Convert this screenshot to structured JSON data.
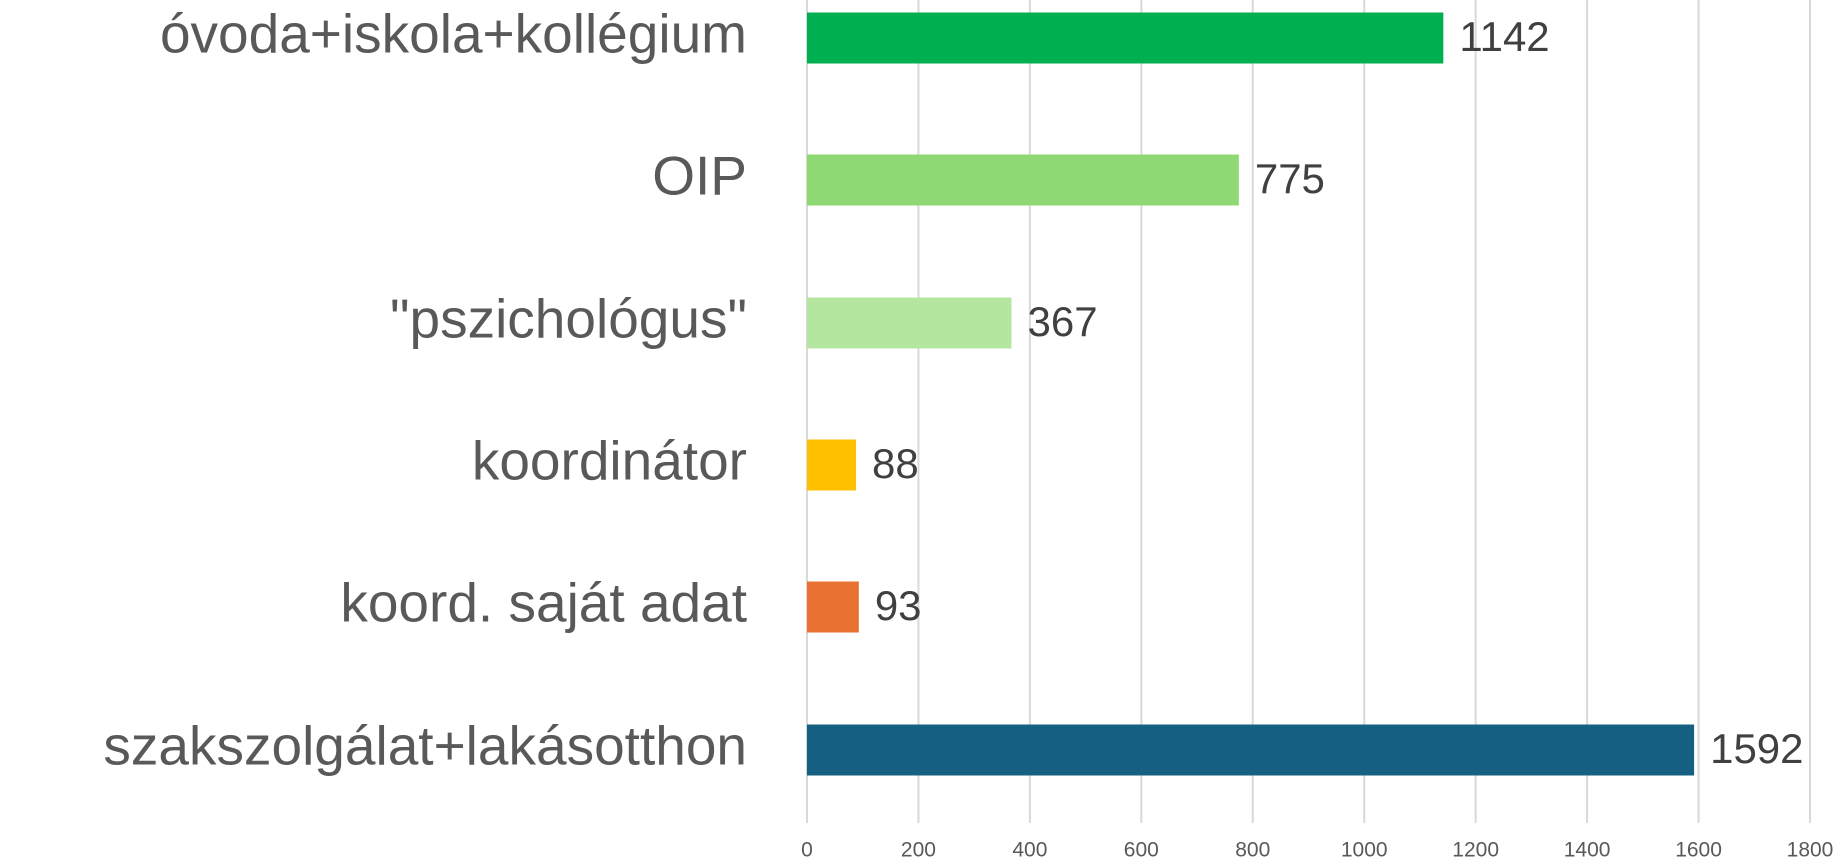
{
  "chart_data": {
    "type": "bar",
    "orientation": "horizontal",
    "categories": [
      "óvoda+iskola+kollégium",
      "OIP",
      "\"pszichológus\"",
      "koordinátor",
      "koord. saját adat",
      "szakszolgálat+lakásotthon"
    ],
    "values": [
      1142,
      775,
      367,
      88,
      93,
      1592
    ],
    "colors": [
      "#00b050",
      "#8fd974",
      "#b4e6a0",
      "#ffc000",
      "#e97132",
      "#156082"
    ],
    "xlim": [
      0,
      1800
    ],
    "xticks": [
      0,
      200,
      400,
      600,
      800,
      1000,
      1200,
      1400,
      1600,
      1800
    ],
    "grid": true
  }
}
